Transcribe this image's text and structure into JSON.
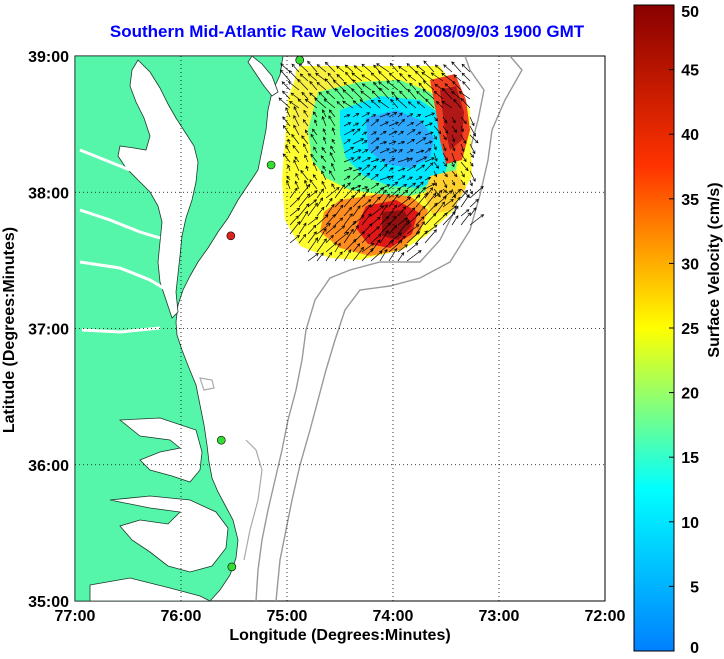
{
  "title": "Southern Mid-Atlantic Raw Velocities 2008/09/03 1900 GMT",
  "map": {
    "xlabel": "Longitude (Degrees:Minutes)",
    "ylabel": "Latitude (Degrees:Minutes)",
    "x_ticks": [
      "77:00",
      "76:00",
      "75:00",
      "74:00",
      "73:00",
      "72:00"
    ],
    "y_ticks": [
      "39:00",
      "38:00",
      "37:00",
      "36:00",
      "35:00"
    ],
    "lon_range": [
      -77,
      -72
    ],
    "lat_range": [
      35,
      39
    ],
    "grid": "dotted",
    "land_color": "#55f5aa",
    "stations": [
      {
        "lon": -74.88,
        "lat": 38.97,
        "color": "#33dd33"
      },
      {
        "lon": -75.15,
        "lat": 38.2,
        "color": "#33dd33"
      },
      {
        "lon": -75.53,
        "lat": 37.68,
        "color": "#dd2222"
      },
      {
        "lon": -75.62,
        "lat": 36.18,
        "color": "#33dd33"
      },
      {
        "lon": -75.52,
        "lat": 35.25,
        "color": "#33dd33"
      }
    ]
  },
  "colorbar": {
    "label": "Surface Velocity (cm/s)",
    "ticks": [
      "50",
      "45",
      "40",
      "35",
      "30",
      "25",
      "20",
      "15",
      "10",
      "5",
      "0"
    ],
    "min": 0,
    "max": 50,
    "colormap": "jet"
  }
}
